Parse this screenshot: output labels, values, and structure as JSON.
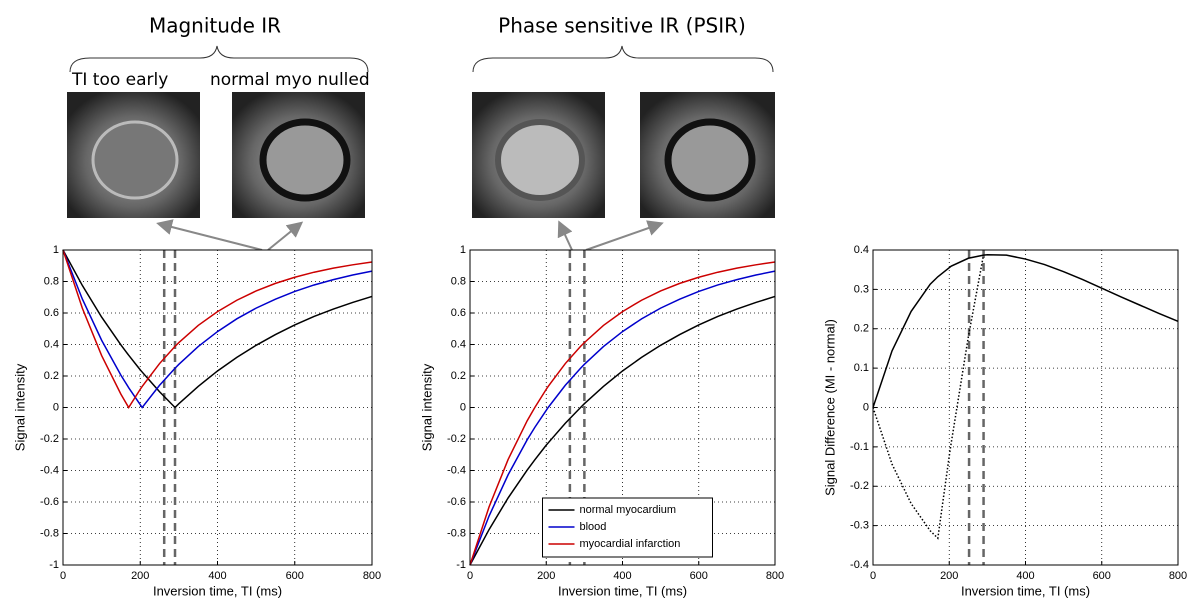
{
  "panels": {
    "magnitude_title": "Magnitude IR",
    "psir_title": "Phase sensitive IR (PSIR)",
    "early_label": "TI too early",
    "nulled_label": "normal myo nulled"
  },
  "chart_data": [
    {
      "type": "line",
      "ylabel": "Signal intensity",
      "xlabel": "Inversion time, TI (ms)",
      "x": [
        0,
        50,
        100,
        150,
        170,
        200,
        205,
        250,
        290,
        300,
        350,
        400,
        450,
        500,
        550,
        600,
        650,
        700,
        750,
        800
      ],
      "xlim": [
        0,
        800
      ],
      "xticks": [
        0,
        200,
        400,
        600,
        800
      ],
      "ylim": [
        -1,
        1
      ],
      "yticks": [
        -1,
        -0.8,
        -0.6,
        -0.4,
        -0.2,
        0,
        0.2,
        0.4,
        0.6,
        0.8,
        1
      ],
      "grid": true,
      "vlines": [
        262,
        290
      ],
      "series": [
        {
          "color": "#000000",
          "values": [
            1,
            0.775,
            0.574,
            0.397,
            0.332,
            0.239,
            0.225,
            0.1,
            0,
            0.024,
            0.134,
            0.232,
            0.318,
            0.395,
            0.463,
            0.524,
            0.578,
            0.625,
            0.667,
            0.705
          ]
        },
        {
          "color": "#0000cc",
          "values": [
            1,
            0.689,
            0.427,
            0.205,
            0.126,
            0.018,
            0,
            0.141,
            0.249,
            0.274,
            0.387,
            0.482,
            0.563,
            0.631,
            0.688,
            0.737,
            0.778,
            0.812,
            0.841,
            0.866
          ]
        },
        {
          "color": "#cc0000",
          "values": [
            1,
            0.631,
            0.33,
            0.084,
            0,
            0.116,
            0.134,
            0.279,
            0.388,
            0.412,
            0.521,
            0.609,
            0.681,
            0.74,
            0.788,
            0.827,
            0.859,
            0.885,
            0.906,
            0.924
          ]
        }
      ]
    },
    {
      "type": "line",
      "ylabel": "Signal intensity",
      "xlabel": "Inversion time, TI (ms)",
      "x": [
        0,
        50,
        100,
        150,
        170,
        200,
        205,
        250,
        290,
        300,
        350,
        400,
        450,
        500,
        550,
        600,
        650,
        700,
        750,
        800
      ],
      "xlim": [
        0,
        800
      ],
      "xticks": [
        0,
        200,
        400,
        600,
        800
      ],
      "ylim": [
        -1,
        1
      ],
      "yticks": [
        -1,
        -0.8,
        -0.6,
        -0.4,
        -0.2,
        0,
        0.2,
        0.4,
        0.6,
        0.8,
        1
      ],
      "grid": true,
      "vlines": [
        262,
        300
      ],
      "legend": "lower center",
      "series": [
        {
          "name": "normal myocardium",
          "color": "#000000",
          "values": [
            -1,
            -0.775,
            -0.574,
            -0.397,
            -0.332,
            -0.239,
            -0.225,
            -0.1,
            0,
            0.024,
            0.134,
            0.232,
            0.318,
            0.395,
            0.463,
            0.524,
            0.578,
            0.625,
            0.667,
            0.705
          ]
        },
        {
          "name": "blood",
          "color": "#0000cc",
          "values": [
            -1,
            -0.689,
            -0.427,
            -0.205,
            -0.126,
            -0.018,
            0,
            0.141,
            0.249,
            0.274,
            0.387,
            0.482,
            0.563,
            0.631,
            0.688,
            0.737,
            0.778,
            0.812,
            0.841,
            0.866
          ]
        },
        {
          "name": "myocardial infarction",
          "color": "#cc0000",
          "values": [
            -1,
            -0.631,
            -0.33,
            -0.084,
            0,
            0.116,
            0.134,
            0.279,
            0.388,
            0.412,
            0.521,
            0.609,
            0.681,
            0.74,
            0.788,
            0.827,
            0.859,
            0.885,
            0.906,
            0.924
          ]
        }
      ]
    },
    {
      "type": "line",
      "ylabel": "Signal Difference (MI - normal)",
      "xlabel": "Inversion time, TI (ms)",
      "x": [
        0,
        50,
        100,
        150,
        170,
        200,
        205,
        250,
        290,
        300,
        350,
        400,
        450,
        500,
        550,
        600,
        650,
        700,
        750,
        800
      ],
      "xlim": [
        0,
        800
      ],
      "xticks": [
        0,
        200,
        400,
        600,
        800
      ],
      "ylim": [
        -0.4,
        0.4
      ],
      "yticks": [
        -0.4,
        -0.3,
        -0.2,
        -0.1,
        0,
        0.1,
        0.2,
        0.3,
        0.4
      ],
      "grid": true,
      "vlines": [
        252,
        290
      ],
      "series": [
        {
          "color": "#000000",
          "values": [
            0,
            0.144,
            0.244,
            0.313,
            0.332,
            0.355,
            0.359,
            0.379,
            0.387,
            0.388,
            0.387,
            0.377,
            0.363,
            0.345,
            0.325,
            0.303,
            0.281,
            0.26,
            0.239,
            0.219
          ]
        },
        {
          "color": "#000000",
          "dash": "dotted",
          "values": [
            0,
            -0.144,
            -0.244,
            -0.313,
            -0.332,
            -0.123,
            -0.091,
            0.179,
            0.388,
            null,
            null,
            null,
            null,
            null,
            null,
            null,
            null,
            null,
            null,
            null
          ]
        }
      ]
    }
  ]
}
